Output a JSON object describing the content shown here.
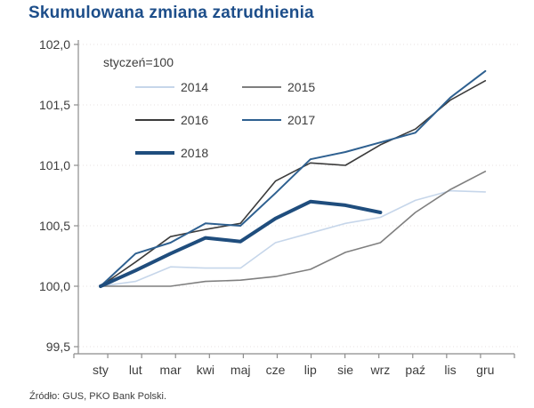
{
  "title": "Skumulowana zmiana zatrudnienia",
  "source": "Źródło: GUS, PKO Bank Polski.",
  "colors": {
    "title": "#1d4e8a",
    "axis": "#8c8c8c",
    "grid": "#e7e2e2",
    "text": "#3d3d3d"
  },
  "chart_data": {
    "type": "line",
    "note": "styczeń=100",
    "categories": [
      "sty",
      "lut",
      "mar",
      "kwi",
      "maj",
      "cze",
      "lip",
      "sie",
      "wrz",
      "paź",
      "lis",
      "gru"
    ],
    "ylim": [
      99.5,
      102.0
    ],
    "y_ticks": [
      {
        "label": "102,0",
        "value": 102.0
      },
      {
        "label": "101,5",
        "value": 101.5
      },
      {
        "label": "101,0",
        "value": 101.0
      },
      {
        "label": "100,5",
        "value": 100.5
      },
      {
        "label": "100,0",
        "value": 100.0
      },
      {
        "label": "99,5",
        "value": 99.5
      }
    ],
    "grid": "horizontal-dotted",
    "legend_position": "top-left-inside",
    "series": [
      {
        "name": "2014",
        "color": "#c6d6ea",
        "width": 1.6,
        "values": [
          100.0,
          100.04,
          100.16,
          100.15,
          100.15,
          100.36,
          100.44,
          100.52,
          100.57,
          100.71,
          100.79,
          100.78
        ]
      },
      {
        "name": "2015",
        "color": "#7f7f7f",
        "width": 1.6,
        "values": [
          100.0,
          100.0,
          100.0,
          100.04,
          100.05,
          100.08,
          100.14,
          100.28,
          100.36,
          100.61,
          100.8,
          100.95
        ]
      },
      {
        "name": "2016",
        "color": "#3b3b3b",
        "width": 1.6,
        "values": [
          100.0,
          100.2,
          100.41,
          100.47,
          100.52,
          100.87,
          101.02,
          101.0,
          101.17,
          101.3,
          101.54,
          101.7
        ]
      },
      {
        "name": "2017",
        "color": "#2e6090",
        "width": 2,
        "values": [
          100.0,
          100.27,
          100.36,
          100.52,
          100.5,
          100.77,
          101.05,
          101.11,
          101.19,
          101.27,
          101.56,
          101.78
        ]
      },
      {
        "name": "2018",
        "color": "#1f4d7d",
        "width": 4,
        "values": [
          100.0,
          100.13,
          100.27,
          100.4,
          100.37,
          100.56,
          100.7,
          100.67,
          100.61
        ]
      }
    ]
  }
}
